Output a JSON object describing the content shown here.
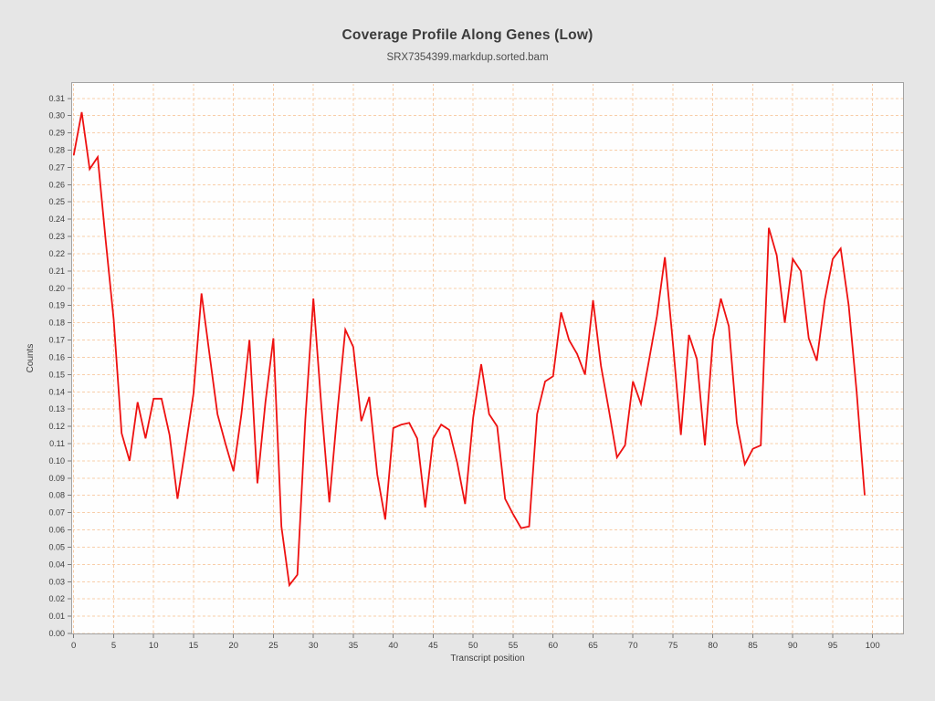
{
  "window": {
    "background_color": "#e6e6e6",
    "plot_background_color": "#fefefe"
  },
  "chart_data": {
    "type": "line",
    "title": "Coverage Profile Along Genes (Low)",
    "subtitle": "SRX7354399.markdup.sorted.bam",
    "xlabel": "Transcript position",
    "ylabel": "Counts",
    "xlim": [
      -0.3,
      104.2
    ],
    "ylim": [
      0,
      0.3195
    ],
    "grid": true,
    "legend": "none",
    "line_color": "#ee1111",
    "grid_color": "#f8cda8",
    "frame_color": "#a2a2a2",
    "tick_color": "#7a7a7a",
    "tick_label_color": "#3c3c3c",
    "xticks": [
      0,
      5,
      10,
      15,
      20,
      25,
      30,
      35,
      40,
      45,
      50,
      55,
      60,
      65,
      70,
      75,
      80,
      85,
      90,
      95,
      100
    ],
    "ytick_min": 0.0,
    "ytick_max": 0.31,
    "ytick_step": 0.01,
    "x": [
      0,
      1,
      2,
      3,
      4,
      5,
      6,
      7,
      8,
      9,
      10,
      11,
      12,
      13,
      14,
      15,
      16,
      17,
      18,
      19,
      20,
      21,
      22,
      23,
      24,
      25,
      26,
      27,
      28,
      29,
      30,
      31,
      32,
      33,
      34,
      35,
      36,
      37,
      38,
      39,
      40,
      41,
      42,
      43,
      44,
      45,
      46,
      47,
      48,
      49,
      50,
      51,
      52,
      53,
      54,
      55,
      56,
      57,
      58,
      59,
      60,
      61,
      62,
      63,
      64,
      65,
      66,
      67,
      68,
      69,
      70,
      71,
      72,
      73,
      74,
      75,
      76,
      77,
      78,
      79,
      80,
      81,
      82,
      83,
      84,
      85,
      86,
      87,
      88,
      89,
      90,
      91,
      92,
      93,
      94,
      95,
      96,
      97,
      98,
      99
    ],
    "values": [
      0.277,
      0.302,
      0.269,
      0.276,
      0.228,
      0.182,
      0.116,
      0.1,
      0.134,
      0.113,
      0.136,
      0.136,
      0.115,
      0.078,
      0.108,
      0.139,
      0.197,
      0.162,
      0.127,
      0.11,
      0.094,
      0.127,
      0.17,
      0.087,
      0.134,
      0.171,
      0.062,
      0.028,
      0.034,
      0.124,
      0.194,
      0.132,
      0.076,
      0.128,
      0.176,
      0.166,
      0.123,
      0.137,
      0.092,
      0.066,
      0.119,
      0.121,
      0.122,
      0.113,
      0.073,
      0.113,
      0.121,
      0.118,
      0.099,
      0.075,
      0.125,
      0.156,
      0.127,
      0.12,
      0.078,
      0.069,
      0.061,
      0.062,
      0.127,
      0.146,
      0.149,
      0.186,
      0.17,
      0.162,
      0.15,
      0.193,
      0.155,
      0.129,
      0.102,
      0.109,
      0.146,
      0.133,
      0.158,
      0.184,
      0.218,
      0.168,
      0.115,
      0.173,
      0.159,
      0.109,
      0.17,
      0.194,
      0.178,
      0.122,
      0.098,
      0.107,
      0.109,
      0.235,
      0.219,
      0.18,
      0.217,
      0.21,
      0.171,
      0.158,
      0.193,
      0.217,
      0.223,
      0.19,
      0.14,
      0.08
    ]
  }
}
